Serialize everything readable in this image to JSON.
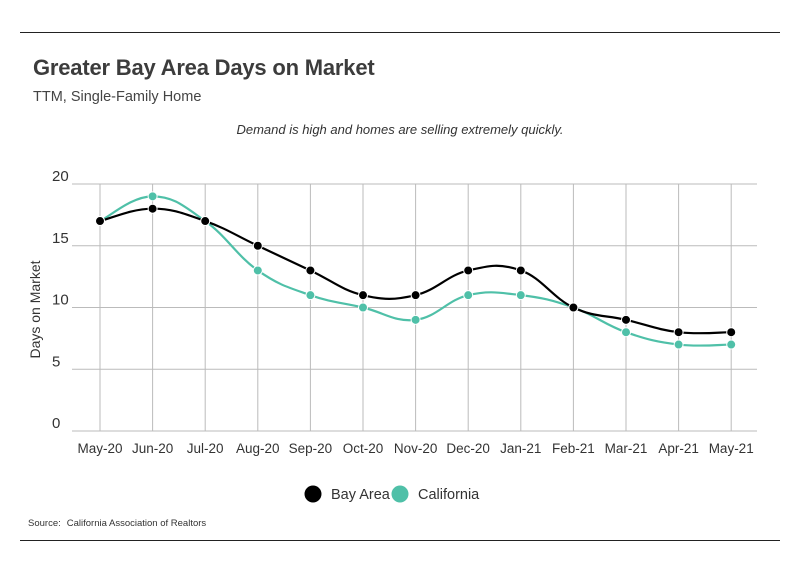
{
  "header": {
    "title": "Greater Bay Area Days on Market",
    "subtitle": "TTM, Single-Family Home"
  },
  "annotation": "Demand is high and homes are selling extremely quickly.",
  "source": {
    "label": "Source:",
    "value": "California Association of Realtors"
  },
  "colors": {
    "bay_area": "#000000",
    "california": "#4fc0a8",
    "grid": "#bbbbbb"
  },
  "chart_data": {
    "type": "line",
    "title": "Greater Bay Area Days on Market",
    "subtitle": "TTM, Single-Family Home",
    "xlabel": "",
    "ylabel": "Days on Market",
    "ylim": [
      0,
      20
    ],
    "yticks": [
      0,
      5,
      10,
      15,
      20
    ],
    "grid": true,
    "legend_position": "bottom-center",
    "smooth": true,
    "categories": [
      "May-20",
      "Jun-20",
      "Jul-20",
      "Aug-20",
      "Sep-20",
      "Oct-20",
      "Nov-20",
      "Dec-20",
      "Jan-21",
      "Feb-21",
      "Mar-21",
      "Apr-21",
      "May-21"
    ],
    "series": [
      {
        "name": "Bay Area",
        "color": "#000000",
        "values": [
          17,
          18,
          17,
          15,
          13,
          11,
          11,
          13,
          13,
          10,
          9,
          8,
          8
        ]
      },
      {
        "name": "California",
        "color": "#4fc0a8",
        "values": [
          17,
          19,
          17,
          13,
          11,
          10,
          9,
          11,
          11,
          10,
          8,
          7,
          7
        ]
      }
    ]
  }
}
